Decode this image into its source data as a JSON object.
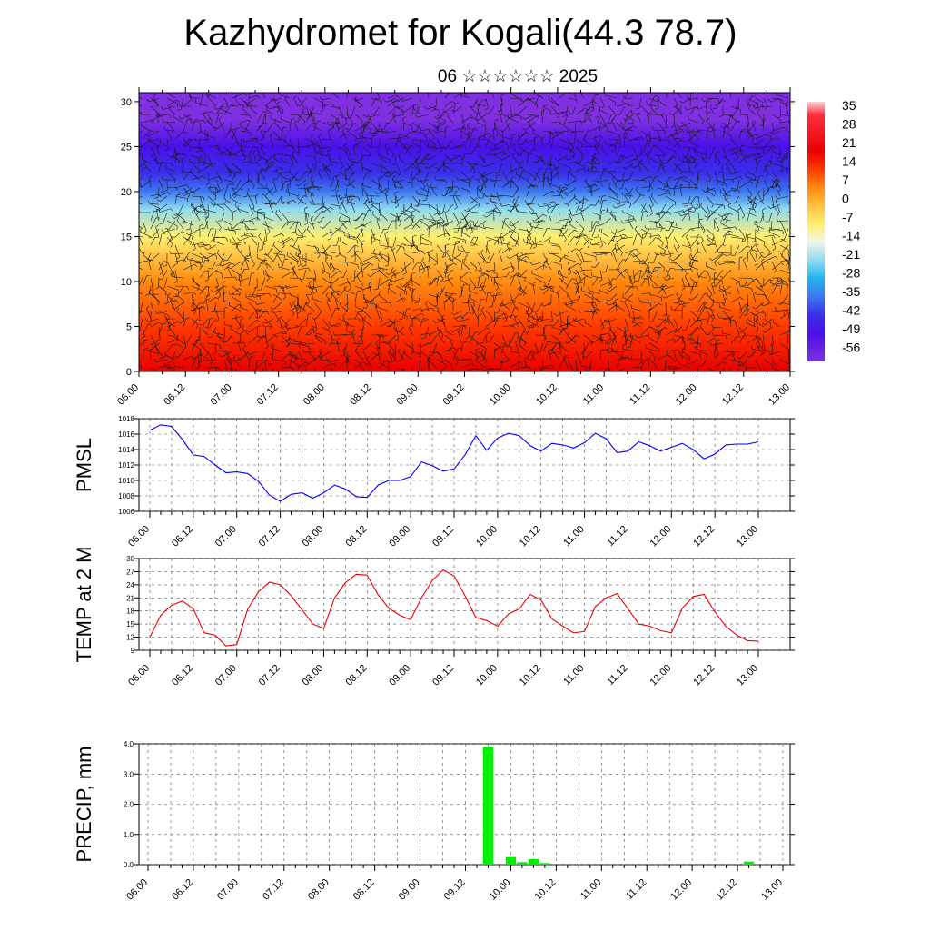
{
  "title": "Kazhydromet for Kogali(44.3 78.7)",
  "subtitle": "06 ☆☆☆☆☆☆ 2025",
  "time_labels": [
    "06.00",
    "06.12",
    "07.00",
    "07.12",
    "08.00",
    "08.12",
    "09.00",
    "09.12",
    "10.00",
    "10.12",
    "11.00",
    "11.12",
    "12.00",
    "12.12",
    "13.00"
  ],
  "chart_data": [
    {
      "type": "heatmap",
      "title": "",
      "xlabel": "",
      "ylabel": "",
      "y_ticks": [
        0,
        5,
        10,
        15,
        20,
        25,
        30
      ],
      "ylim": [
        0,
        31
      ],
      "colorbar": {
        "labels": [
          "35",
          "28",
          "21",
          "14",
          "7",
          "0",
          "-7",
          "-14",
          "-21",
          "-28",
          "-35",
          "-42",
          "-49",
          "-56"
        ],
        "stops": [
          {
            "value": 40,
            "color": "#ffd0d8"
          },
          {
            "value": 35,
            "color": "#ff3040"
          },
          {
            "value": 21,
            "color": "#e80000"
          },
          {
            "value": 14,
            "color": "#ff3a00"
          },
          {
            "value": 7,
            "color": "#ff8a10"
          },
          {
            "value": 0,
            "color": "#ffc040"
          },
          {
            "value": -7,
            "color": "#ffef70"
          },
          {
            "value": -14,
            "color": "#f0f4e8"
          },
          {
            "value": -21,
            "color": "#90dcf0"
          },
          {
            "value": -28,
            "color": "#20b4ee"
          },
          {
            "value": -35,
            "color": "#3c78f0"
          },
          {
            "value": -42,
            "color": "#3a30e8"
          },
          {
            "value": -49,
            "color": "#4a10e8"
          },
          {
            "value": -60,
            "color": "#8030e0"
          }
        ]
      },
      "profile": [
        {
          "height": 0,
          "value": 27
        },
        {
          "height": 5,
          "value": 15
        },
        {
          "height": 10,
          "value": 6
        },
        {
          "height": 15,
          "value": -7
        },
        {
          "height": 18,
          "value": -22
        },
        {
          "height": 20,
          "value": -33
        },
        {
          "height": 22,
          "value": -44
        },
        {
          "height": 25,
          "value": -49
        },
        {
          "height": 28,
          "value": -56
        },
        {
          "height": 31,
          "value": -58
        }
      ],
      "overlay": "wind barbs"
    },
    {
      "type": "line",
      "title": "",
      "ylabel": "PMSL",
      "xlabel": "",
      "ylim": [
        1006,
        1018
      ],
      "y_ticks": [
        1006,
        1008,
        1010,
        1012,
        1014,
        1016,
        1018
      ],
      "grid": true,
      "series": [
        {
          "color": "#0000ff",
          "values": [
            1016.5,
            1017.2,
            1017.0,
            1015.3,
            1013.3,
            1013.1,
            1012.0,
            1011.0,
            1011.1,
            1010.9,
            1009.9,
            1008.1,
            1007.3,
            1008.2,
            1008.4,
            1007.7,
            1008.4,
            1009.4,
            1008.9,
            1007.9,
            1007.8,
            1009.4,
            1010.0,
            1010.0,
            1010.5,
            1012.4,
            1011.9,
            1011.2,
            1011.5,
            1013.3,
            1015.8,
            1013.9,
            1015.5,
            1016.1,
            1015.8,
            1014.5,
            1013.8,
            1014.8,
            1014.6,
            1014.2,
            1014.9,
            1016.1,
            1015.4,
            1013.6,
            1013.8,
            1015.0,
            1014.5,
            1013.8,
            1014.3,
            1014.8,
            1014.0,
            1012.8,
            1013.4,
            1014.6,
            1014.7,
            1014.7,
            1015.0
          ]
        }
      ]
    },
    {
      "type": "line",
      "title": "",
      "ylabel": "TEMP at 2 M",
      "xlabel": "",
      "ylim": [
        9,
        30
      ],
      "y_ticks": [
        9,
        12,
        15,
        18,
        21,
        24,
        27,
        30
      ],
      "grid": true,
      "series": [
        {
          "color": "#ee0000",
          "values": [
            12,
            17,
            19.3,
            20.3,
            18.5,
            13,
            12.5,
            10,
            10.3,
            18.4,
            22.4,
            24.6,
            24,
            21.5,
            18.3,
            15,
            14,
            21,
            24.5,
            26.4,
            26.2,
            21.7,
            18.6,
            17,
            16,
            21,
            25,
            27.4,
            26,
            21.5,
            16.5,
            15.8,
            14.5,
            17.3,
            18.5,
            21.8,
            20.5,
            16.2,
            14.5,
            13,
            13.3,
            19,
            21,
            22,
            18.5,
            15,
            14.5,
            13.5,
            13,
            18.6,
            21.3,
            21.8,
            17.8,
            14.5,
            12.5,
            11.2,
            11.1
          ]
        }
      ]
    },
    {
      "type": "bar",
      "title": "",
      "ylabel": "PRECIP, mm",
      "xlabel": "",
      "ylim": [
        0,
        4
      ],
      "y_ticks": [
        "0.0",
        "1.0",
        "2.0",
        "3.0",
        "4.0"
      ],
      "grid": true,
      "color": "#00ee00",
      "bars": [
        {
          "hour": 90,
          "value": 3.9
        },
        {
          "hour": 96,
          "value": 0.25
        },
        {
          "hour": 99,
          "value": 0.08
        },
        {
          "hour": 102,
          "value": 0.18
        },
        {
          "hour": 105,
          "value": 0.05
        },
        {
          "hour": 159,
          "value": 0.1
        }
      ]
    }
  ]
}
